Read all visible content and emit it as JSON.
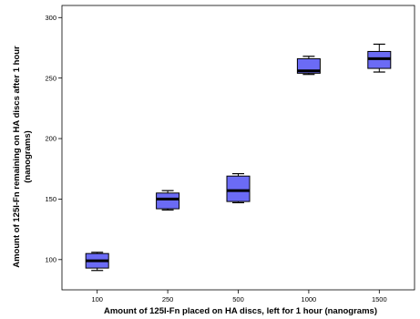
{
  "chart_data": {
    "type": "boxplot",
    "title": "",
    "xlabel": "Amount of 125I-Fn placed on HA discs, left for 1 hour (nanograms)",
    "ylabel_line1": "Amount of 125I-Fn remaining on HA discs after 1 hour",
    "ylabel_line2": "(nanograms)",
    "ylim": [
      75,
      310
    ],
    "yticks": [
      "100",
      "150",
      "200",
      "250",
      "300"
    ],
    "categories": [
      "100",
      "250",
      "500",
      "1000",
      "1500"
    ],
    "boxes": [
      {
        "category": "100",
        "whisker_low": 91,
        "q1": 93,
        "median": 99,
        "q3": 105,
        "whisker_high": 106
      },
      {
        "category": "250",
        "whisker_low": 141,
        "q1": 142,
        "median": 150,
        "q3": 155,
        "whisker_high": 157
      },
      {
        "category": "500",
        "whisker_low": 147,
        "q1": 148,
        "median": 157,
        "q3": 169,
        "whisker_high": 171
      },
      {
        "category": "1000",
        "whisker_low": 253,
        "q1": 254,
        "median": 256,
        "q3": 266,
        "whisker_high": 268
      },
      {
        "category": "1500",
        "whisker_low": 255,
        "q1": 258,
        "median": 266,
        "q3": 272,
        "whisker_high": 278
      }
    ],
    "box_color": "#6b6bf5",
    "grid": false,
    "legend": "none"
  }
}
